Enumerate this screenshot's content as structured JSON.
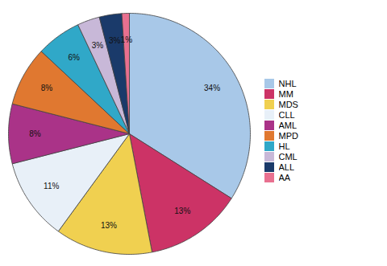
{
  "chart_data": {
    "type": "pie",
    "categories": [
      "NHL",
      "MM",
      "MDS",
      "CLL",
      "AML",
      "MPD",
      "HL",
      "CML",
      "ALL",
      "AA"
    ],
    "values": [
      34,
      13,
      13,
      11,
      8,
      8,
      6,
      3,
      3,
      1
    ],
    "value_labels": [
      "34%",
      "13%",
      "13%",
      "11%",
      "8%",
      "8%",
      "6%",
      "3%",
      "3%",
      "1%"
    ],
    "colors": [
      "#A8C8E8",
      "#CC3366",
      "#F0D050",
      "#E8F0F8",
      "#AA3388",
      "#E07830",
      "#30A8C8",
      "#C8B8D8",
      "#1A3A6A",
      "#E87090"
    ],
    "data_labels": true,
    "legend": "right"
  }
}
